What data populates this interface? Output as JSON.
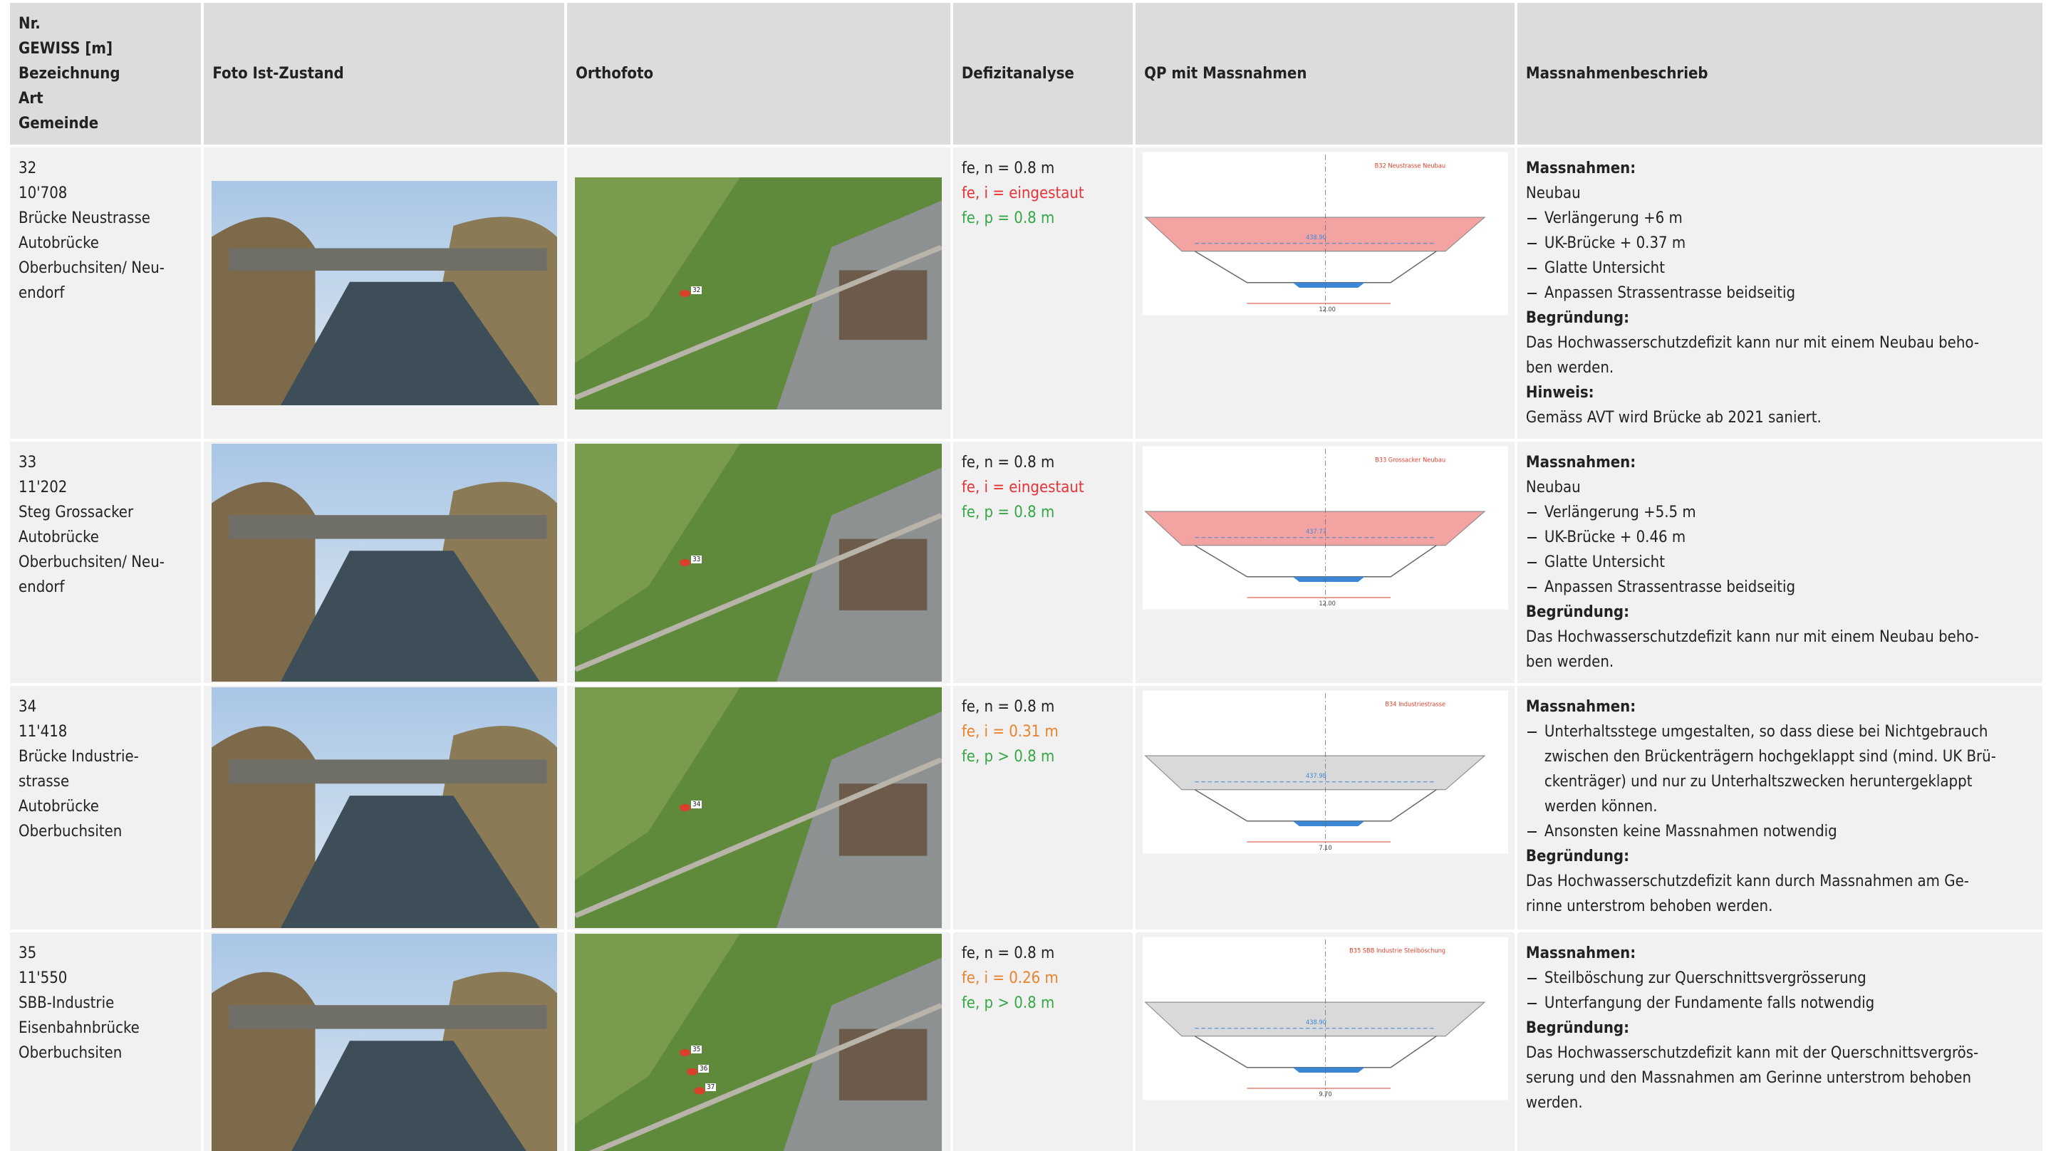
{
  "header": [
    [
      "Nr.",
      "GEWISS [m]",
      "Bezeichnung",
      "Art",
      "Gemeinde"
    ],
    [
      "Foto Ist-Zustand"
    ],
    [
      "Orthofoto"
    ],
    [
      "Defizitanalyse"
    ],
    [
      "QP mit Massnahmen"
    ],
    [
      "Massnahmenbeschrieb"
    ]
  ],
  "rows": [
    {
      "id_lines": [
        "32",
        "10'708",
        "Brücke Neustrasse",
        "Autobrücke",
        "Oberbuchsiten/ Neu-",
        "endorf"
      ],
      "defizit": [
        {
          "text": "fe, n = 0.8 m",
          "color": "#222222"
        },
        {
          "text": "fe, i = eingestaut",
          "color": "#e63338"
        },
        {
          "text": "fe, p = 0.8 m",
          "color": "#35a845"
        }
      ],
      "ortho_markers": [
        "32"
      ],
      "qp": {
        "title": "B32 Neustrasse Neubau",
        "level": "438.90",
        "width": "12.00",
        "deck_color": "#f4a3a3"
      },
      "measures": [
        {
          "kind": "heading",
          "lines": [
            "Massnahmen:"
          ]
        },
        {
          "kind": "text",
          "lines": [
            "Neubau"
          ]
        },
        {
          "kind": "bullet",
          "lines": [
            "Verlängerung +6 m"
          ]
        },
        {
          "kind": "bullet",
          "lines": [
            "UK-Brücke + 0.37 m"
          ]
        },
        {
          "kind": "bullet",
          "lines": [
            "Glatte Untersicht"
          ]
        },
        {
          "kind": "bullet",
          "lines": [
            "Anpassen Strassentrasse beidseitig"
          ]
        },
        {
          "kind": "heading",
          "lines": [
            "Begründung:"
          ]
        },
        {
          "kind": "text",
          "lines": [
            "Das Hochwasserschutzdefizit kann nur mit einem Neubau beho-",
            "ben werden."
          ]
        },
        {
          "kind": "heading",
          "lines": [
            "Hinweis:"
          ]
        },
        {
          "kind": "text",
          "lines": [
            "Gemäss AVT wird Brücke ab 2021 saniert."
          ]
        }
      ]
    },
    {
      "id_lines": [
        "33",
        "11'202",
        "Steg Grossacker",
        "Autobrücke",
        "Oberbuchsiten/ Neu-",
        "endorf"
      ],
      "defizit": [
        {
          "text": "fe, n = 0.8 m",
          "color": "#222222"
        },
        {
          "text": "fe, i = eingestaut",
          "color": "#e63338"
        },
        {
          "text": "fe, p = 0.8 m",
          "color": "#35a845"
        }
      ],
      "ortho_markers": [
        "33"
      ],
      "qp": {
        "title": "B33 Grossacker Neubau",
        "level": "437.77",
        "width": "12.00",
        "deck_color": "#f4a3a3"
      },
      "measures": [
        {
          "kind": "heading",
          "lines": [
            "Massnahmen:"
          ]
        },
        {
          "kind": "text",
          "lines": [
            "Neubau"
          ]
        },
        {
          "kind": "bullet",
          "lines": [
            "Verlängerung +5.5 m"
          ]
        },
        {
          "kind": "bullet",
          "lines": [
            "UK-Brücke + 0.46 m"
          ]
        },
        {
          "kind": "bullet",
          "lines": [
            "Glatte Untersicht"
          ]
        },
        {
          "kind": "bullet",
          "lines": [
            "Anpassen Strassentrasse beidseitig"
          ]
        },
        {
          "kind": "heading",
          "lines": [
            "Begründung:"
          ]
        },
        {
          "kind": "text",
          "lines": [
            "Das Hochwasserschutzdefizit kann nur mit einem Neubau beho-",
            "ben werden."
          ]
        }
      ]
    },
    {
      "id_lines": [
        "34",
        "11'418",
        "Brücke Industrie-",
        "strasse",
        "Autobrücke",
        "Oberbuchsiten"
      ],
      "defizit": [
        {
          "text": "fe, n = 0.8 m",
          "color": "#222222"
        },
        {
          "text": "fe, i = 0.31 m",
          "color": "#e8822c"
        },
        {
          "text": "fe, p > 0.8 m",
          "color": "#35a845"
        }
      ],
      "ortho_markers": [
        "34"
      ],
      "qp": {
        "title": "B34 Industriestrasse",
        "level": "437.98",
        "width": "7.10",
        "deck_color": "#d9d9d9"
      },
      "measures": [
        {
          "kind": "heading",
          "lines": [
            "Massnahmen:"
          ]
        },
        {
          "kind": "bullet",
          "lines": [
            "Unterhaltsstege umgestalten, so dass diese bei Nichtgebrauch",
            "zwischen den Brückenträgern hochgeklappt sind (mind. UK Brü-",
            "ckenträger) und nur zu Unterhaltszwecken heruntergeklappt",
            "werden können."
          ]
        },
        {
          "kind": "bullet",
          "lines": [
            "Ansonsten keine Massnahmen notwendig"
          ]
        },
        {
          "kind": "heading",
          "lines": [
            "Begründung:"
          ]
        },
        {
          "kind": "text",
          "lines": [
            "Das Hochwasserschutzdefizit kann durch Massnahmen am Ge-",
            "rinne unterstrom behoben werden."
          ]
        }
      ]
    },
    {
      "id_lines": [
        "35",
        "11'550",
        "SBB-Industrie",
        "Eisenbahnbrücke",
        "Oberbuchsiten"
      ],
      "defizit": [
        {
          "text": "fe, n = 0.8 m",
          "color": "#222222"
        },
        {
          "text": "fe, i = 0.26 m",
          "color": "#e8822c"
        },
        {
          "text": "fe, p > 0.8 m",
          "color": "#35a845"
        }
      ],
      "ortho_markers": [
        "35",
        "36",
        "37"
      ],
      "qp": {
        "title": "B35 SBB Industrie Steilböschung",
        "level": "438.90",
        "width": "9.70",
        "deck_color": "#d9d9d9"
      },
      "measures": [
        {
          "kind": "heading",
          "lines": [
            "Massnahmen:"
          ]
        },
        {
          "kind": "bullet",
          "lines": [
            "Steilböschung zur Querschnittsvergrösserung"
          ]
        },
        {
          "kind": "bullet",
          "lines": [
            "Unterfangung der Fundamente falls notwendig"
          ]
        },
        {
          "kind": "heading",
          "lines": [
            "Begründung:"
          ]
        },
        {
          "kind": "text",
          "lines": [
            "Das Hochwasserschutzdefizit kann mit der Querschnittsvergrös-",
            "serung und den Massnahmen am Gerinne unterstrom behoben",
            "werden."
          ]
        }
      ]
    }
  ]
}
